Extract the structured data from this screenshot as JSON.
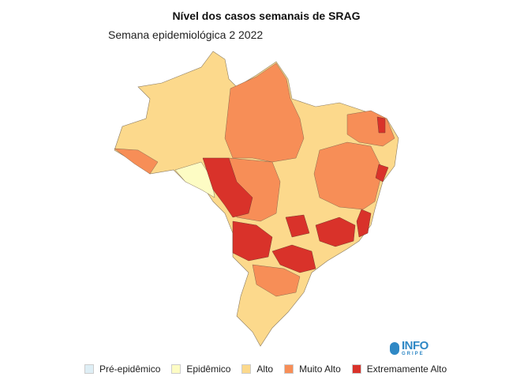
{
  "title": "Nível dos casos semanais de SRAG",
  "subtitle": "Semana epidemiológica 2 2022",
  "logo": {
    "main": "INFO",
    "sub": "GRIPE",
    "color": "#2f88c5"
  },
  "legend": [
    {
      "label": "Pré-epidêmico",
      "color": "#deeef5"
    },
    {
      "label": "Epidêmico",
      "color": "#fdfcc4"
    },
    {
      "label": "Alto",
      "color": "#fcd98c"
    },
    {
      "label": "Muito Alto",
      "color": "#f78e57"
    },
    {
      "label": "Extremamente Alto",
      "color": "#d9322a"
    }
  ]
}
